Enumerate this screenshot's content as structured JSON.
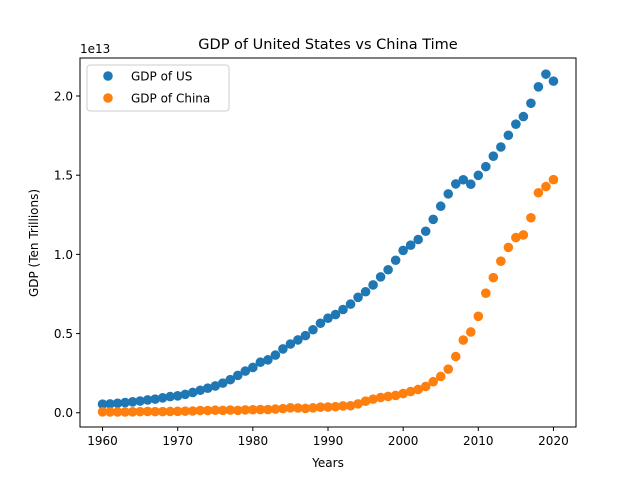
{
  "colors": {
    "us": "#1f77b4",
    "china": "#ff7f0e",
    "axis": "#000000",
    "legend_border": "#cccccc"
  },
  "chart_data": {
    "type": "scatter",
    "title": "GDP of United States vs China Time",
    "xlabel": "Years",
    "ylabel": "GDP (Ten Trillions)",
    "y_offset_label": "1e13",
    "xlim": [
      1957,
      2023
    ],
    "ylim": [
      -0.09,
      2.24
    ],
    "x_ticks": [
      1960,
      1970,
      1980,
      1990,
      2000,
      2010,
      2020
    ],
    "x_tick_labels": [
      "1960",
      "1970",
      "1980",
      "1990",
      "2000",
      "2010",
      "2020"
    ],
    "y_ticks": [
      0.0,
      0.5,
      1.0,
      1.5,
      2.0
    ],
    "y_tick_labels": [
      "0.0",
      "0.5",
      "1.0",
      "1.5",
      "2.0"
    ],
    "grid": false,
    "legend_position": "top-left",
    "x": [
      1960,
      1961,
      1962,
      1963,
      1964,
      1965,
      1966,
      1967,
      1968,
      1969,
      1970,
      1971,
      1972,
      1973,
      1974,
      1975,
      1976,
      1977,
      1978,
      1979,
      1980,
      1981,
      1982,
      1983,
      1984,
      1985,
      1986,
      1987,
      1988,
      1989,
      1990,
      1991,
      1992,
      1993,
      1994,
      1995,
      1996,
      1997,
      1998,
      1999,
      2000,
      2001,
      2002,
      2003,
      2004,
      2005,
      2006,
      2007,
      2008,
      2009,
      2010,
      2011,
      2012,
      2013,
      2014,
      2015,
      2016,
      2017,
      2018,
      2019,
      2020
    ],
    "series": [
      {
        "name": "GDP of US",
        "values": [
          0.054,
          0.056,
          0.06,
          0.064,
          0.069,
          0.074,
          0.081,
          0.086,
          0.094,
          0.102,
          0.107,
          0.116,
          0.128,
          0.142,
          0.155,
          0.169,
          0.187,
          0.209,
          0.236,
          0.263,
          0.286,
          0.319,
          0.334,
          0.364,
          0.403,
          0.434,
          0.46,
          0.487,
          0.524,
          0.565,
          0.597,
          0.62,
          0.652,
          0.686,
          0.729,
          0.764,
          0.807,
          0.858,
          0.903,
          0.963,
          1.025,
          1.058,
          1.094,
          1.146,
          1.221,
          1.304,
          1.382,
          1.445,
          1.471,
          1.443,
          1.499,
          1.554,
          1.62,
          1.678,
          1.752,
          1.822,
          1.87,
          1.954,
          2.058,
          2.138,
          2.094
        ]
      },
      {
        "name": "GDP of China",
        "values": [
          0.006,
          0.005,
          0.005,
          0.005,
          0.006,
          0.007,
          0.008,
          0.007,
          0.007,
          0.008,
          0.009,
          0.01,
          0.011,
          0.014,
          0.014,
          0.016,
          0.015,
          0.017,
          0.015,
          0.018,
          0.019,
          0.02,
          0.02,
          0.023,
          0.026,
          0.031,
          0.03,
          0.027,
          0.031,
          0.035,
          0.036,
          0.038,
          0.043,
          0.044,
          0.056,
          0.073,
          0.086,
          0.096,
          0.103,
          0.109,
          0.121,
          0.134,
          0.147,
          0.166,
          0.196,
          0.229,
          0.275,
          0.355,
          0.459,
          0.51,
          0.609,
          0.755,
          0.853,
          0.957,
          1.044,
          1.106,
          1.123,
          1.231,
          1.389,
          1.428,
          1.472
        ]
      }
    ]
  }
}
